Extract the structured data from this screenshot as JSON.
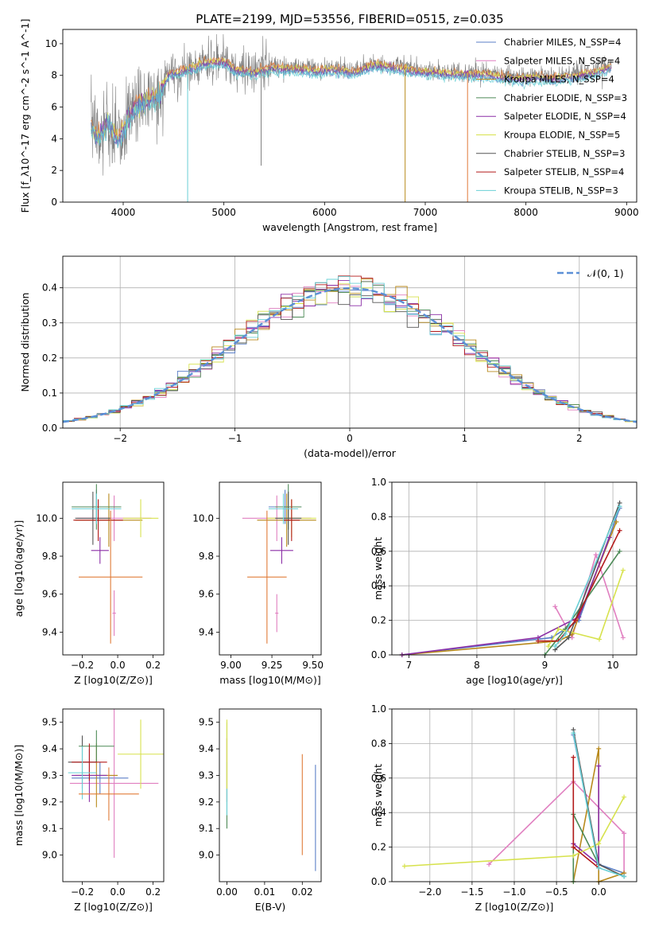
{
  "figure_title": "PLATE=2199, MJD=53556, FIBERID=0515, z=0.035",
  "colors": {
    "series": [
      "#5b7fc7",
      "#e07fc0",
      "#b88a1c",
      "#4d8a57",
      "#8b2fa6",
      "#d7e24d",
      "#555555",
      "#b31a1a",
      "#69d0d6"
    ],
    "gray_spectrum": "#808080",
    "orange_fit": "#e07b39",
    "normal_curve": "#5b8fd6",
    "grid": "#b0b0b0"
  },
  "chart_data": [
    {
      "type": "line",
      "title": "PLATE=2199, MJD=53556, FIBERID=0515, z=0.035",
      "xlabel": "wavelength [Angstrom, rest frame]",
      "ylabel": "Flux [f_λ10^-17 erg cm^-2 s^-1 A^-1]",
      "xlim": [
        3400,
        9100
      ],
      "ylim": [
        0,
        10.9
      ],
      "xticks": [
        "4000",
        "5000",
        "6000",
        "7000",
        "8000",
        "9000"
      ],
      "yticks": [
        "0",
        "2",
        "4",
        "6",
        "8",
        "10"
      ],
      "grid": false,
      "legend_position": "top-right",
      "legend": [
        "Chabrier MILES, N_SSP=4",
        "Salpeter MILES, N_SSP=4",
        "Kroupa MILES, N_SSP=4",
        "Chabrier ELODIE, N_SSP=3",
        "Salpeter ELODIE, N_SSP=4",
        "Kroupa ELODIE, N_SSP=5",
        "Chabrier STELIB, N_SSP=3",
        "Salpeter STELIB, N_SSP=4",
        "Kroupa STELIB, N_SSP=3"
      ],
      "continuum": {
        "x": [
          3680,
          3750,
          3850,
          3950,
          4050,
          4150,
          4250,
          4350,
          4450,
          4600,
          4800,
          5000,
          5100,
          5200,
          5300,
          5500,
          5700,
          5900,
          6100,
          6300,
          6500,
          6700,
          6900,
          7100,
          7300,
          7500,
          7700,
          7900,
          8100,
          8300,
          8500,
          8700,
          8850
        ],
        "y": [
          5.0,
          4.2,
          5.2,
          4.0,
          5.5,
          6.3,
          6.5,
          6.9,
          8.2,
          8.4,
          8.9,
          9.0,
          8.5,
          8.4,
          8.3,
          8.6,
          8.5,
          8.4,
          8.5,
          8.3,
          8.8,
          8.6,
          8.4,
          8.3,
          8.2,
          8.2,
          8.1,
          7.9,
          8.0,
          7.9,
          8.1,
          8.3,
          8.7
        ]
      },
      "spikes": [
        {
          "x": 4640,
          "y": 0,
          "color": "#69d0d6"
        },
        {
          "x": 5370,
          "y": 2.3,
          "color": "#808080"
        },
        {
          "x": 6800,
          "y": 0,
          "color": "#b88a1c"
        },
        {
          "x": 7420,
          "y": 0,
          "color": "#e07b39"
        }
      ]
    },
    {
      "type": "histogram",
      "xlabel": "(data-model)/error",
      "ylabel": "Normed distribution",
      "xlim": [
        -2.5,
        2.5
      ],
      "ylim": [
        0,
        0.49
      ],
      "xticks": [
        "−2",
        "−1",
        "0",
        "1",
        "2"
      ],
      "yticks": [
        "0.0",
        "0.1",
        "0.2",
        "0.3",
        "0.4"
      ],
      "grid": true,
      "legend_position": "top-right",
      "legend": [
        "𝒩(0, 1)"
      ],
      "bin_width": 0.1,
      "curve": "standard normal pdf"
    },
    {
      "type": "scatter",
      "xlabel": "Z [log10(Z/Z⊙)]",
      "ylabel": "age [log10(age/yr)]",
      "xlim": [
        -0.31,
        0.26
      ],
      "ylim": [
        9.28,
        10.19
      ],
      "xticks": [
        "−0.2",
        "0.0",
        "0.2"
      ],
      "yticks": [
        "9.4",
        "9.6",
        "9.8",
        "10.0"
      ],
      "points": [
        {
          "x": -0.12,
          "y": 10.06,
          "xerr": 0.12,
          "yerr": 0.09
        },
        {
          "x": -0.02,
          "y": 10.0,
          "xerr": 0.21,
          "yerr": 0.12
        },
        {
          "x": -0.05,
          "y": 9.99,
          "xerr": 0.19,
          "yerr": 0.14
        },
        {
          "x": -0.12,
          "y": 10.06,
          "xerr": 0.14,
          "yerr": 0.12
        },
        {
          "x": -0.1,
          "y": 9.83,
          "xerr": 0.05,
          "yerr": 0.07
        },
        {
          "x": 0.13,
          "y": 10.0,
          "xerr": 0.1,
          "yerr": 0.1
        },
        {
          "x": -0.14,
          "y": 10.0,
          "xerr": 0.1,
          "yerr": 0.14
        },
        {
          "x": -0.11,
          "y": 9.99,
          "xerr": 0.14,
          "yerr": 0.11
        },
        {
          "x": -0.12,
          "y": 10.05,
          "xerr": 0.14,
          "yerr": 0.08
        },
        {
          "x": -0.04,
          "y": 9.69,
          "xerr": 0.18,
          "yerr": 0.35
        },
        {
          "x": -0.02,
          "y": 9.5,
          "xerr": 0.01,
          "yerr": 0.12
        }
      ]
    },
    {
      "type": "scatter",
      "xlabel": "mass [log10(M/M⊙)]",
      "ylabel": "",
      "xlim": [
        8.93,
        9.55
      ],
      "ylim": [
        9.28,
        10.19
      ],
      "xticks": [
        "9.00",
        "9.25",
        "9.50"
      ],
      "yticks": [
        "9.4",
        "9.6",
        "9.8",
        "10.0"
      ],
      "points": [
        {
          "x": 9.33,
          "y": 10.06,
          "xerr": 0.1,
          "yerr": 0.09
        },
        {
          "x": 9.28,
          "y": 10.0,
          "xerr": 0.21,
          "yerr": 0.12
        },
        {
          "x": 9.34,
          "y": 9.99,
          "xerr": 0.18,
          "yerr": 0.14
        },
        {
          "x": 9.35,
          "y": 10.06,
          "xerr": 0.08,
          "yerr": 0.12
        },
        {
          "x": 9.31,
          "y": 9.83,
          "xerr": 0.07,
          "yerr": 0.07
        },
        {
          "x": 9.37,
          "y": 10.0,
          "xerr": 0.15,
          "yerr": 0.1
        },
        {
          "x": 9.35,
          "y": 10.0,
          "xerr": 0.08,
          "yerr": 0.14
        },
        {
          "x": 9.37,
          "y": 9.99,
          "xerr": 0.05,
          "yerr": 0.11
        },
        {
          "x": 9.32,
          "y": 10.05,
          "xerr": 0.09,
          "yerr": 0.08
        },
        {
          "x": 9.22,
          "y": 9.69,
          "xerr": 0.12,
          "yerr": 0.35
        },
        {
          "x": 9.28,
          "y": 9.5,
          "xerr": 0.01,
          "yerr": 0.1
        }
      ]
    },
    {
      "type": "line",
      "xlabel": "age [log10(age/yr)]",
      "ylabel": "mass weight",
      "xlim": [
        6.75,
        10.35
      ],
      "ylim": [
        0,
        1.0
      ],
      "xticks": [
        "7",
        "8",
        "9",
        "10"
      ],
      "yticks": [
        "0.0",
        "0.2",
        "0.4",
        "0.6",
        "0.8",
        "1.0"
      ],
      "grid": true,
      "series": [
        {
          "x": [
            6.9,
            9.1,
            9.5,
            10.1
          ],
          "y": [
            0.0,
            0.1,
            0.2,
            0.85
          ]
        },
        {
          "x": [
            9.15,
            9.4,
            9.75,
            10.15
          ],
          "y": [
            0.28,
            0.1,
            0.58,
            0.1
          ]
        },
        {
          "x": [
            6.9,
            9.2,
            9.4,
            10.05
          ],
          "y": [
            0.0,
            0.08,
            0.12,
            0.77
          ]
        },
        {
          "x": [
            9.0,
            9.3,
            10.1
          ],
          "y": [
            0.0,
            0.15,
            0.6
          ]
        },
        {
          "x": [
            6.9,
            8.9,
            9.5,
            9.95
          ],
          "y": [
            0.0,
            0.1,
            0.22,
            0.68
          ]
        },
        {
          "x": [
            9.05,
            9.2,
            9.8,
            10.15
          ],
          "y": [
            0.05,
            0.15,
            0.09,
            0.49
          ]
        },
        {
          "x": [
            9.15,
            9.35,
            10.1
          ],
          "y": [
            0.03,
            0.1,
            0.88
          ]
        },
        {
          "x": [
            8.9,
            9.2,
            9.45,
            10.1
          ],
          "y": [
            0.08,
            0.08,
            0.2,
            0.72
          ]
        },
        {
          "x": [
            9.15,
            9.3,
            10.1
          ],
          "y": [
            0.05,
            0.12,
            0.86
          ]
        }
      ]
    },
    {
      "type": "scatter",
      "xlabel": "Z [log10(Z/Z⊙)]",
      "ylabel": "mass [log10(M/M⊙)]",
      "xlim": [
        -0.31,
        0.26
      ],
      "ylim": [
        8.9,
        9.55
      ],
      "xticks": [
        "−0.2",
        "0.0",
        "0.2"
      ],
      "yticks": [
        "9.0",
        "9.1",
        "9.2",
        "9.3",
        "9.4",
        "9.5"
      ],
      "points": [
        {
          "x": -0.1,
          "y": 9.29,
          "xerr": 0.16,
          "yerr": 0.06
        },
        {
          "x": -0.02,
          "y": 9.27,
          "xerr": 0.25,
          "yerr": 0.28
        },
        {
          "x": -0.12,
          "y": 9.3,
          "xerr": 0.12,
          "yerr": 0.12
        },
        {
          "x": -0.12,
          "y": 9.41,
          "xerr": 0.1,
          "yerr": 0.06
        },
        {
          "x": -0.16,
          "y": 9.3,
          "xerr": 0.1,
          "yerr": 0.1
        },
        {
          "x": 0.13,
          "y": 9.38,
          "xerr": 0.13,
          "yerr": 0.13
        },
        {
          "x": -0.2,
          "y": 9.35,
          "xerr": 0.08,
          "yerr": 0.1
        },
        {
          "x": -0.16,
          "y": 9.35,
          "xerr": 0.1,
          "yerr": 0.07
        },
        {
          "x": -0.2,
          "y": 9.31,
          "xerr": 0.08,
          "yerr": 0.1
        },
        {
          "x": -0.05,
          "y": 9.23,
          "xerr": 0.17,
          "yerr": 0.1
        }
      ]
    },
    {
      "type": "scatter",
      "xlabel": "E(B-V)",
      "ylabel": "",
      "xlim": [
        -0.002,
        0.025
      ],
      "ylim": [
        8.9,
        9.55
      ],
      "xticks": [
        "0.00",
        "0.01",
        "0.02"
      ],
      "yticks": [
        "9.0",
        "9.1",
        "9.2",
        "9.3",
        "9.4",
        "9.5"
      ],
      "points": [
        {
          "x": 0.0,
          "y": 9.3,
          "yerr": 0.2,
          "color_index": 3
        },
        {
          "x": 0.0,
          "y": 9.32,
          "yerr": 0.12,
          "color_index": 7
        },
        {
          "x": 0.0,
          "y": 9.25,
          "yerr": 0.1,
          "color_index": 8
        },
        {
          "x": 0.0,
          "y": 9.38,
          "yerr": 0.13,
          "color_index": 5
        },
        {
          "x": 0.02,
          "y": 9.19,
          "yerr": 0.19,
          "color_index": 9
        },
        {
          "x": 0.0235,
          "y": 9.14,
          "yerr": 0.2,
          "color_index": 0
        }
      ]
    },
    {
      "type": "line",
      "xlabel": "Z [log10(Z/Z⊙)]",
      "ylabel": "mass weight",
      "xlim": [
        -2.45,
        0.45
      ],
      "ylim": [
        0,
        1.0
      ],
      "xticks": [
        "−2.0",
        "−1.5",
        "−1.0",
        "−0.5",
        "0.0"
      ],
      "yticks": [
        "0.0",
        "0.2",
        "0.4",
        "0.6",
        "0.8",
        "1.0"
      ],
      "grid": true,
      "series": [
        {
          "x": [
            -0.3,
            0.0,
            0.3
          ],
          "y": [
            0.85,
            0.1,
            0.05
          ]
        },
        {
          "x": [
            -1.3,
            -0.3,
            0.3,
            0.3
          ],
          "y": [
            0.1,
            0.58,
            0.28,
            0.05
          ]
        },
        {
          "x": [
            -0.3,
            0.0,
            0.0,
            0.3
          ],
          "y": [
            0.0,
            0.77,
            0.0,
            0.05
          ]
        },
        {
          "x": [
            -0.3,
            -0.3,
            0.0
          ],
          "y": [
            0.0,
            0.39,
            0.1
          ]
        },
        {
          "x": [
            -0.3,
            0.0,
            0.0
          ],
          "y": [
            0.22,
            0.1,
            0.67
          ]
        },
        {
          "x": [
            -2.3,
            -0.3,
            0.0,
            0.3
          ],
          "y": [
            0.09,
            0.15,
            0.22,
            0.49
          ]
        },
        {
          "x": [
            -0.3,
            0.0,
            0.3
          ],
          "y": [
            0.88,
            0.1,
            0.03
          ]
        },
        {
          "x": [
            -0.3,
            -0.3,
            0.0
          ],
          "y": [
            0.72,
            0.2,
            0.08
          ]
        },
        {
          "x": [
            -0.3,
            0.0,
            0.3
          ],
          "y": [
            0.86,
            0.08,
            0.03
          ]
        }
      ]
    }
  ]
}
